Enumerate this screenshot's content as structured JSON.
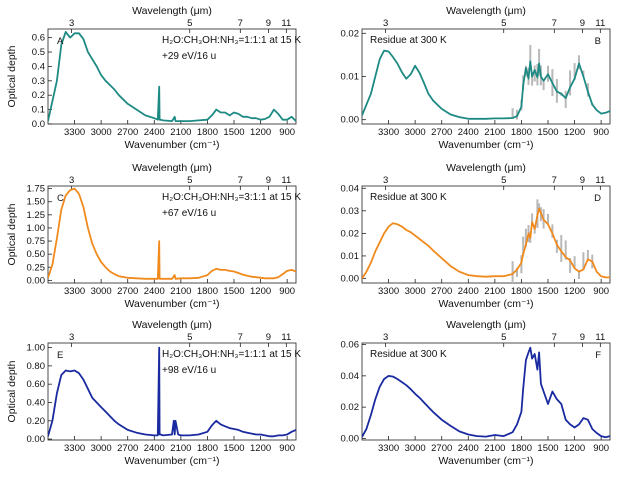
{
  "figure": {
    "top_axis_label": "Wavelength (μm)",
    "bottom_axis_label": "Wavenumber (cm⁻¹)",
    "y_axis_label": "Optical depth"
  },
  "chart_data": [
    {
      "panel": "A",
      "type": "line",
      "title": "H₂O:CH₃OH:NH₃=1:1:1 at 15 K",
      "subtitle": "+29 eV/16 u",
      "color": "#1e8a84",
      "xlim": [
        3600,
        800
      ],
      "x_ticks": [
        3300,
        3000,
        2700,
        2400,
        2100,
        1800,
        1500,
        1200,
        900
      ],
      "top_ticks": [
        "3",
        "5",
        "7",
        "9",
        "11"
      ],
      "ylabel": "Optical depth",
      "ylim": [
        0,
        0.66
      ],
      "y_ticks": [
        0.0,
        0.1,
        0.2,
        0.3,
        0.4,
        0.5,
        0.6
      ],
      "series": [
        {
          "x": [
            3600,
            3500,
            3450,
            3400,
            3350,
            3300,
            3250,
            3200,
            3150,
            3100,
            3050,
            3000,
            2950,
            2900,
            2850,
            2800,
            2700,
            2600,
            2500,
            2400,
            2360,
            2345,
            2340,
            2330,
            2300,
            2200,
            2170,
            2160,
            2100,
            2000,
            1900,
            1800,
            1750,
            1700,
            1650,
            1600,
            1550,
            1500,
            1450,
            1400,
            1350,
            1300,
            1250,
            1200,
            1150,
            1100,
            1050,
            1000,
            950,
            900,
            850,
            800
          ],
          "values": [
            0.02,
            0.3,
            0.55,
            0.64,
            0.6,
            0.63,
            0.63,
            0.59,
            0.5,
            0.45,
            0.4,
            0.34,
            0.3,
            0.27,
            0.24,
            0.2,
            0.14,
            0.1,
            0.06,
            0.04,
            0.03,
            0.26,
            0.03,
            0.03,
            0.025,
            0.02,
            0.05,
            0.02,
            0.02,
            0.02,
            0.025,
            0.03,
            0.06,
            0.1,
            0.08,
            0.08,
            0.06,
            0.08,
            0.07,
            0.05,
            0.05,
            0.04,
            0.04,
            0.03,
            0.035,
            0.05,
            0.1,
            0.07,
            0.03,
            0.03,
            0.05,
            0.02
          ]
        }
      ]
    },
    {
      "panel": "B",
      "type": "line",
      "title": "Residue at 300 K",
      "color": "#1e8a84",
      "noise_color": "#b8b8b8",
      "xlim": [
        3600,
        800
      ],
      "x_ticks": [
        3300,
        3000,
        2700,
        2400,
        2100,
        1800,
        1500,
        1200,
        900
      ],
      "top_ticks": [
        "3",
        "5",
        "7",
        "9",
        "11"
      ],
      "ylim": [
        -0.001,
        0.021
      ],
      "y_ticks": [
        0.0,
        0.01,
        0.02
      ],
      "series": [
        {
          "x": [
            3600,
            3500,
            3450,
            3400,
            3350,
            3300,
            3250,
            3200,
            3150,
            3100,
            3050,
            3000,
            2950,
            2900,
            2850,
            2800,
            2700,
            2600,
            2500,
            2400,
            2300,
            2200,
            2100,
            2000,
            1900,
            1850,
            1800,
            1780,
            1750,
            1720,
            1700,
            1680,
            1650,
            1620,
            1600,
            1580,
            1550,
            1500,
            1450,
            1400,
            1350,
            1300,
            1250,
            1200,
            1150,
            1100,
            1050,
            1000,
            950,
            900,
            850,
            800
          ],
          "values": [
            0.001,
            0.006,
            0.01,
            0.014,
            0.016,
            0.0158,
            0.0145,
            0.013,
            0.011,
            0.0095,
            0.0105,
            0.0125,
            0.0108,
            0.0085,
            0.006,
            0.0045,
            0.0025,
            0.0012,
            0.0006,
            0.0002,
            0.0002,
            0.0002,
            0.0003,
            0.0003,
            0.0004,
            0.0008,
            0.003,
            0.008,
            0.012,
            0.0095,
            0.0135,
            0.01,
            0.0115,
            0.0098,
            0.013,
            0.01,
            0.009,
            0.0105,
            0.0085,
            0.0065,
            0.006,
            0.005,
            0.0075,
            0.0095,
            0.013,
            0.01,
            0.0065,
            0.0035,
            0.0022,
            0.0014,
            0.0016,
            0.002
          ]
        }
      ]
    },
    {
      "panel": "C",
      "type": "line",
      "title": "H₂O:CH₃OH:NH₃=3:1:1 at 15 K",
      "subtitle": "+67 eV/16 u",
      "color": "#f08a1c",
      "xlim": [
        3600,
        800
      ],
      "x_ticks": [
        3300,
        3000,
        2700,
        2400,
        2100,
        1800,
        1500,
        1200,
        900
      ],
      "top_ticks": [
        "3",
        "5",
        "7",
        "9",
        "11"
      ],
      "ylabel": "Optical depth",
      "ylim": [
        -0.05,
        1.8
      ],
      "y_ticks": [
        0.0,
        0.25,
        0.5,
        0.75,
        1.0,
        1.25,
        1.5,
        1.75
      ],
      "series": [
        {
          "x": [
            3600,
            3550,
            3500,
            3450,
            3400,
            3350,
            3300,
            3250,
            3200,
            3150,
            3100,
            3050,
            3000,
            2950,
            2900,
            2850,
            2800,
            2700,
            2600,
            2500,
            2400,
            2360,
            2345,
            2340,
            2330,
            2300,
            2200,
            2170,
            2160,
            2100,
            2000,
            1900,
            1800,
            1750,
            1700,
            1650,
            1600,
            1550,
            1500,
            1450,
            1400,
            1350,
            1300,
            1250,
            1200,
            1150,
            1100,
            1050,
            1000,
            950,
            900,
            850,
            800
          ],
          "values": [
            0.05,
            0.3,
            0.8,
            1.35,
            1.62,
            1.72,
            1.75,
            1.65,
            1.4,
            1.0,
            0.7,
            0.5,
            0.35,
            0.25,
            0.17,
            0.12,
            0.08,
            0.05,
            0.04,
            0.03,
            0.03,
            0.03,
            0.75,
            0.03,
            0.03,
            0.03,
            0.03,
            0.1,
            0.03,
            0.04,
            0.04,
            0.05,
            0.1,
            0.18,
            0.22,
            0.2,
            0.2,
            0.18,
            0.17,
            0.14,
            0.11,
            0.09,
            0.07,
            0.06,
            0.05,
            0.04,
            0.04,
            0.04,
            0.06,
            0.12,
            0.18,
            0.2,
            0.17
          ]
        }
      ]
    },
    {
      "panel": "D",
      "type": "line",
      "title": "Residue at 300 K",
      "color": "#f08a1c",
      "noise_color": "#b8b8b8",
      "xlim": [
        3600,
        800
      ],
      "x_ticks": [
        3300,
        3000,
        2700,
        2400,
        2100,
        1800,
        1500,
        1200,
        900
      ],
      "top_ticks": [
        "3",
        "5",
        "7",
        "9",
        "11"
      ],
      "ylim": [
        -0.002,
        0.041
      ],
      "y_ticks": [
        0.0,
        0.01,
        0.02,
        0.03,
        0.04
      ],
      "series": [
        {
          "x": [
            3600,
            3550,
            3500,
            3450,
            3400,
            3350,
            3300,
            3250,
            3200,
            3150,
            3100,
            3050,
            3000,
            2950,
            2900,
            2850,
            2800,
            2700,
            2600,
            2500,
            2400,
            2300,
            2200,
            2100,
            2000,
            1900,
            1850,
            1800,
            1780,
            1750,
            1720,
            1700,
            1680,
            1650,
            1620,
            1600,
            1580,
            1550,
            1500,
            1450,
            1400,
            1350,
            1300,
            1250,
            1200,
            1150,
            1100,
            1050,
            1000,
            950,
            900,
            850,
            800
          ],
          "values": [
            0.0,
            0.003,
            0.007,
            0.012,
            0.016,
            0.02,
            0.023,
            0.0245,
            0.024,
            0.023,
            0.0215,
            0.0205,
            0.019,
            0.0175,
            0.016,
            0.0145,
            0.0125,
            0.009,
            0.0055,
            0.003,
            0.0015,
            0.001,
            0.0008,
            0.001,
            0.001,
            0.002,
            0.004,
            0.007,
            0.011,
            0.015,
            0.02,
            0.018,
            0.025,
            0.022,
            0.028,
            0.031,
            0.029,
            0.026,
            0.024,
            0.02,
            0.015,
            0.012,
            0.0095,
            0.008,
            0.0045,
            0.003,
            0.004,
            0.0085,
            0.0075,
            0.003,
            0.001,
            0.0005,
            0.0005
          ]
        }
      ]
    },
    {
      "panel": "E",
      "type": "line",
      "title": "H₂O:CH₃OH:NH₃=1:1:1 at 15 K",
      "subtitle": "+98 eV/16 u",
      "color": "#1a2aa0",
      "xlim": [
        3600,
        800
      ],
      "x_ticks": [
        3300,
        3000,
        2700,
        2400,
        2100,
        1800,
        1500,
        1200,
        900
      ],
      "top_ticks": [
        "3",
        "5",
        "7",
        "9",
        "11"
      ],
      "ylabel": "Optical depth",
      "ylim": [
        -0.01,
        1.05
      ],
      "y_ticks": [
        0.0,
        0.2,
        0.4,
        0.6,
        0.8,
        1.0
      ],
      "series": [
        {
          "x": [
            3600,
            3550,
            3500,
            3450,
            3400,
            3350,
            3300,
            3250,
            3200,
            3150,
            3100,
            3050,
            3000,
            2950,
            2900,
            2850,
            2800,
            2700,
            2600,
            2500,
            2400,
            2360,
            2345,
            2340,
            2330,
            2300,
            2200,
            2180,
            2170,
            2160,
            2130,
            2100,
            2000,
            1900,
            1800,
            1750,
            1700,
            1650,
            1600,
            1550,
            1500,
            1450,
            1400,
            1350,
            1300,
            1250,
            1200,
            1150,
            1100,
            1050,
            1000,
            950,
            900,
            850,
            800
          ],
          "values": [
            0.03,
            0.2,
            0.5,
            0.7,
            0.75,
            0.74,
            0.75,
            0.72,
            0.65,
            0.55,
            0.45,
            0.4,
            0.35,
            0.3,
            0.25,
            0.2,
            0.16,
            0.1,
            0.07,
            0.05,
            0.04,
            0.04,
            1.0,
            0.05,
            0.05,
            0.04,
            0.05,
            0.2,
            0.05,
            0.2,
            0.05,
            0.04,
            0.04,
            0.05,
            0.08,
            0.15,
            0.2,
            0.16,
            0.14,
            0.12,
            0.11,
            0.1,
            0.08,
            0.07,
            0.06,
            0.05,
            0.05,
            0.04,
            0.03,
            0.03,
            0.04,
            0.04,
            0.05,
            0.08,
            0.1
          ]
        }
      ]
    },
    {
      "panel": "F",
      "type": "line",
      "title": "Residue at 300 K",
      "color": "#1a2aa0",
      "xlim": [
        3600,
        800
      ],
      "x_ticks": [
        3300,
        3000,
        2700,
        2400,
        2100,
        1800,
        1500,
        1200,
        900
      ],
      "top_ticks": [
        "3",
        "5",
        "7",
        "9",
        "11"
      ],
      "ylim": [
        -0.001,
        0.061
      ],
      "y_ticks": [
        0.0,
        0.02,
        0.04,
        0.06
      ],
      "series": [
        {
          "x": [
            3600,
            3550,
            3500,
            3450,
            3400,
            3350,
            3300,
            3250,
            3200,
            3150,
            3100,
            3050,
            3000,
            2950,
            2900,
            2850,
            2800,
            2700,
            2600,
            2500,
            2400,
            2300,
            2200,
            2100,
            2000,
            1900,
            1850,
            1800,
            1780,
            1750,
            1720,
            1700,
            1680,
            1650,
            1620,
            1600,
            1580,
            1550,
            1500,
            1450,
            1400,
            1350,
            1300,
            1250,
            1200,
            1150,
            1100,
            1050,
            1000,
            950,
            900,
            850,
            800
          ],
          "values": [
            0.001,
            0.006,
            0.015,
            0.025,
            0.033,
            0.038,
            0.04,
            0.0395,
            0.038,
            0.036,
            0.034,
            0.0315,
            0.0285,
            0.026,
            0.023,
            0.02,
            0.017,
            0.012,
            0.008,
            0.0045,
            0.0025,
            0.0015,
            0.0012,
            0.0022,
            0.0015,
            0.004,
            0.009,
            0.017,
            0.032,
            0.05,
            0.055,
            0.058,
            0.051,
            0.054,
            0.044,
            0.055,
            0.035,
            0.03,
            0.022,
            0.03,
            0.025,
            0.022,
            0.012,
            0.009,
            0.007,
            0.009,
            0.013,
            0.012,
            0.006,
            0.0035,
            0.0015,
            0.0008,
            0.0015
          ]
        }
      ]
    }
  ]
}
